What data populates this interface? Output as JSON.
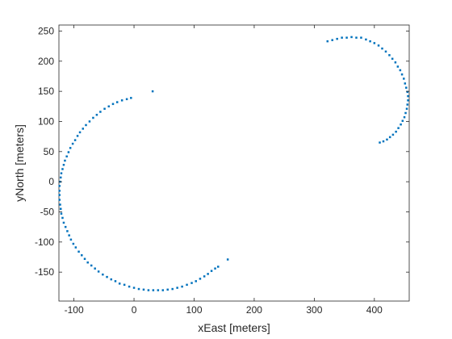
{
  "chart_data": {
    "type": "scatter",
    "title": "",
    "xlabel": "xEast [meters]",
    "ylabel": "yNorth [meters]",
    "xlim": [
      -125,
      458
    ],
    "ylim": [
      -198,
      260
    ],
    "xticks": [
      -100,
      0,
      100,
      200,
      300,
      400
    ],
    "yticks": [
      -150,
      -100,
      -50,
      0,
      50,
      100,
      150,
      200,
      250
    ],
    "grid": false,
    "legend": "none",
    "marker_color": "#0072BD",
    "series": [
      {
        "points": [
          [
            -5,
            139
          ],
          [
            -12,
            137
          ],
          [
            -20,
            135
          ],
          [
            -28,
            132
          ],
          [
            -35,
            129
          ],
          [
            -42,
            125
          ],
          [
            -49,
            121
          ],
          [
            -56,
            116
          ],
          [
            -62,
            111
          ],
          [
            -68,
            106
          ],
          [
            -74,
            100
          ],
          [
            -80,
            94
          ],
          [
            -85,
            88
          ],
          [
            -90,
            82
          ],
          [
            -94,
            76
          ],
          [
            -98,
            69
          ],
          [
            -102,
            63
          ],
          [
            -106,
            56
          ],
          [
            -109,
            49
          ],
          [
            -112,
            42
          ],
          [
            -115,
            35
          ],
          [
            -117,
            28
          ],
          [
            -119,
            21
          ],
          [
            -121,
            14
          ],
          [
            -122,
            7
          ],
          [
            -123,
            0
          ],
          [
            -124,
            -7
          ],
          [
            -124,
            -15
          ],
          [
            -124,
            -22
          ],
          [
            -124,
            -30
          ],
          [
            -123,
            -38
          ],
          [
            -122,
            -45
          ],
          [
            -121,
            -53
          ],
          [
            -119,
            -60
          ],
          [
            -117,
            -68
          ],
          [
            -114,
            -75
          ],
          [
            -111,
            -82
          ],
          [
            -108,
            -89
          ],
          [
            -105,
            -96
          ],
          [
            -101,
            -103
          ],
          [
            -97,
            -109
          ],
          [
            -92,
            -116
          ],
          [
            -87,
            -122
          ],
          [
            -82,
            -128
          ],
          [
            -77,
            -134
          ],
          [
            -71,
            -139
          ],
          [
            -65,
            -144
          ],
          [
            -59,
            -149
          ],
          [
            -52,
            -154
          ],
          [
            -45,
            -158
          ],
          [
            -38,
            -162
          ],
          [
            -31,
            -165
          ],
          [
            -24,
            -169
          ],
          [
            -16,
            -171
          ],
          [
            -8,
            -174
          ],
          [
            0,
            -176
          ],
          [
            8,
            -178
          ],
          [
            16,
            -179
          ],
          [
            24,
            -180
          ],
          [
            32,
            -180
          ],
          [
            40,
            -180
          ],
          [
            48,
            -180
          ],
          [
            56,
            -179
          ],
          [
            64,
            -178
          ],
          [
            72,
            -176
          ],
          [
            80,
            -174
          ],
          [
            88,
            -171
          ],
          [
            96,
            -168
          ],
          [
            103,
            -165
          ],
          [
            110,
            -161
          ],
          [
            117,
            -157
          ],
          [
            123,
            -153
          ],
          [
            129,
            -148
          ],
          [
            135,
            -144
          ],
          [
            140,
            -141
          ],
          [
            156,
            -129
          ],
          [
            31,
            150
          ],
          [
            322,
            233
          ],
          [
            330,
            235
          ],
          [
            338,
            237
          ],
          [
            346,
            239
          ],
          [
            354,
            239
          ],
          [
            362,
            240
          ],
          [
            370,
            239
          ],
          [
            378,
            239
          ],
          [
            386,
            236
          ],
          [
            393,
            233
          ],
          [
            400,
            230
          ],
          [
            407,
            226
          ],
          [
            413,
            221
          ],
          [
            419,
            216
          ],
          [
            425,
            210
          ],
          [
            430,
            204
          ],
          [
            435,
            198
          ],
          [
            439,
            191
          ],
          [
            443,
            185
          ],
          [
            446,
            178
          ],
          [
            449,
            171
          ],
          [
            451,
            163
          ],
          [
            453,
            156
          ],
          [
            455,
            149
          ],
          [
            456,
            142
          ],
          [
            456,
            135
          ],
          [
            455,
            128
          ],
          [
            454,
            121
          ],
          [
            452,
            114
          ],
          [
            450,
            107
          ],
          [
            447,
            101
          ],
          [
            444,
            95
          ],
          [
            440,
            89
          ],
          [
            436,
            83
          ],
          [
            431,
            78
          ],
          [
            426,
            74
          ],
          [
            421,
            70
          ],
          [
            415,
            67
          ],
          [
            409,
            65
          ]
        ]
      }
    ]
  }
}
